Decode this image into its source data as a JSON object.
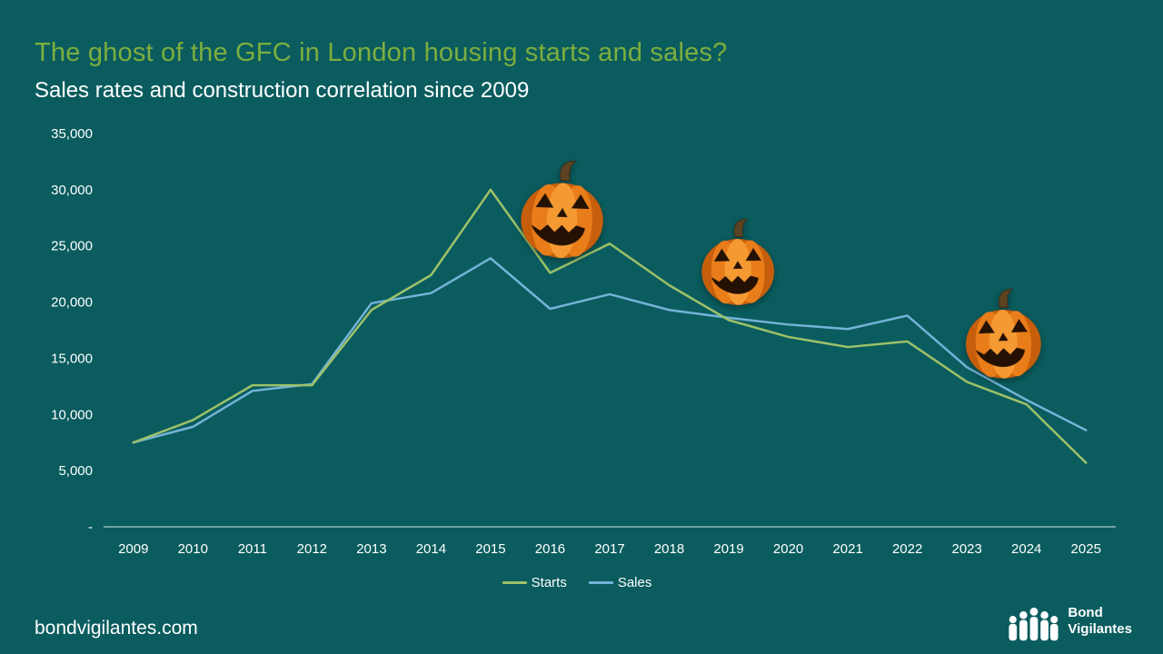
{
  "slide": {
    "title": "The ghost of the GFC in London housing starts and sales?",
    "subtitle": "Sales rates and construction correlation since 2009",
    "footer_url": "bondvigilantes.com",
    "logo": {
      "line1": "Bond",
      "line2": "Vigilantes"
    },
    "colors": {
      "background": "#0a5c5e",
      "title_green": "#7dae3f",
      "axis_text": "#ffffff",
      "axis_line": "#d8e8e8"
    },
    "decorations": {
      "pumpkin_icon_count": 3
    }
  },
  "chart_data": {
    "type": "line",
    "title": "",
    "xlabel": "",
    "ylabel": "",
    "x": [
      "2009",
      "2010",
      "2011",
      "2012",
      "2013",
      "2014",
      "2015",
      "2016",
      "2017",
      "2018",
      "2019",
      "2020",
      "2021",
      "2022",
      "2023",
      "2024",
      "2025"
    ],
    "series": [
      {
        "name": "Starts",
        "color": "#9dc169",
        "values": [
          7500,
          9500,
          12600,
          12600,
          19300,
          22400,
          30000,
          22600,
          25200,
          21500,
          18400,
          16900,
          16000,
          16500,
          12900,
          10900,
          5700
        ]
      },
      {
        "name": "Sales",
        "color": "#74b3d8",
        "values": [
          7500,
          8900,
          12100,
          12700,
          19900,
          20800,
          23900,
          19400,
          20700,
          19300,
          18600,
          18000,
          17600,
          18800,
          14200,
          11300,
          8600
        ]
      }
    ],
    "ylim": [
      0,
      35000
    ],
    "y_ticks": [
      35000,
      30000,
      25000,
      20000,
      15000,
      10000,
      5000,
      0
    ],
    "y_tick_labels": [
      "35,000",
      "30,000",
      "25,000",
      "20,000",
      "15,000",
      "10,000",
      "5,000",
      "-"
    ],
    "grid": false,
    "legend_position": "bottom"
  }
}
